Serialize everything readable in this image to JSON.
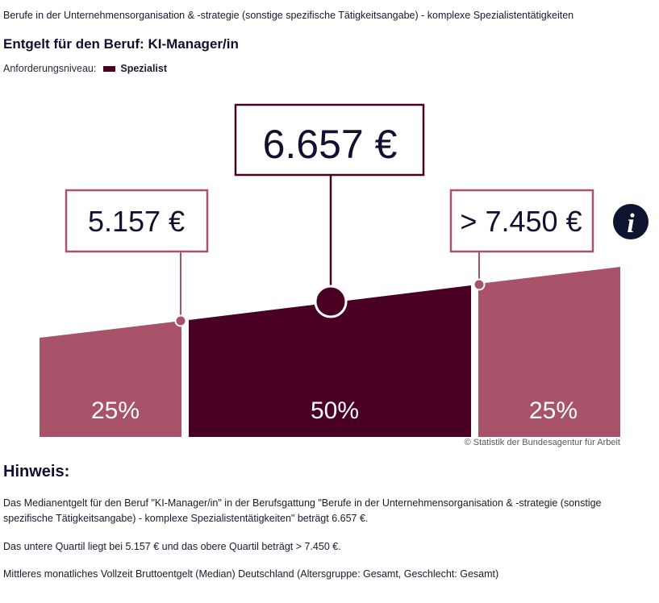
{
  "occupation": "Berufe in der Unternehmensorganisation & -strategie (sonstige spezifische Tätigkeitsangabe) - komplexe Spezialistentätigkeiten",
  "title": "Entgelt für den Beruf: KI-Manager/in",
  "level": {
    "label": "Anforderungsniveau:",
    "value": "Spezialist",
    "color": "#4a0022"
  },
  "chart_data": {
    "type": "area",
    "segments": [
      {
        "share_label": "25%",
        "color": "#a8536a"
      },
      {
        "share_label": "50%",
        "color": "#4a0022"
      },
      {
        "share_label": "25%",
        "color": "#a8536a"
      }
    ],
    "markers": [
      {
        "label": "5.157 €",
        "value": 5157,
        "role": "lower-quartile"
      },
      {
        "label": "6.657 €",
        "value": 6657,
        "role": "median"
      },
      {
        "label": "> 7.450 €",
        "value": 7450,
        "role": "upper-quartile"
      }
    ],
    "info_icon": "info-icon",
    "source": "© Statistik der Bundesagentur für Arbeit"
  },
  "hint": {
    "title": "Hinweis:",
    "paragraphs": [
      "Das Medianentgelt für den Beruf \"KI-Manager/in\" in der Berufsgattung \"Berufe in der Unternehmensorganisation & -strategie (sonstige spezifische Tätigkeitsangabe) - komplexe Spezialistentätigkeiten\" beträgt 6.657 €.",
      "Das untere Quartil liegt bei 5.157 € und das obere Quartil beträgt > 7.450 €.",
      "Mittleres monatliches Vollzeit Bruttoentgelt (Median) Deutschland (Altersgruppe: Gesamt, Geschlecht: Gesamt)"
    ]
  }
}
